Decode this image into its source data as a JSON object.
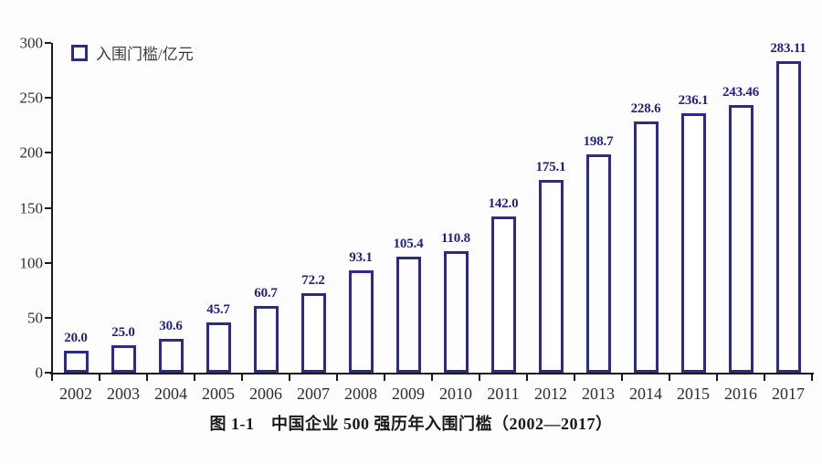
{
  "chart_data": {
    "type": "bar",
    "title": "图 1-1　中国企业 500 强历年入围门槛（2002—2017）",
    "legend": "入围门槛/亿元",
    "categories": [
      "2002",
      "2003",
      "2004",
      "2005",
      "2006",
      "2007",
      "2008",
      "2009",
      "2010",
      "2011",
      "2012",
      "2013",
      "2014",
      "2015",
      "2016",
      "2017"
    ],
    "values": [
      20.0,
      25.0,
      30.6,
      45.7,
      60.7,
      72.2,
      93.1,
      105.4,
      110.8,
      142.0,
      175.1,
      198.7,
      228.6,
      236.1,
      243.46,
      283.11
    ],
    "value_labels": [
      "20.0",
      "25.0",
      "30.6",
      "45.7",
      "60.7",
      "72.2",
      "93.1",
      "105.4",
      "110.8",
      "142.0",
      "175.1",
      "198.7",
      "228.6",
      "236.1",
      "243.46",
      "283.11"
    ],
    "xlabel": "",
    "ylabel": "",
    "ylim": [
      0,
      300
    ],
    "yticks": [
      "0",
      "50",
      "100",
      "150",
      "200",
      "250",
      "300"
    ],
    "grid": false,
    "legend_position": "top-left"
  },
  "colors": {
    "bar_border": "#2b2b8c",
    "bar_fill": "#ffffff",
    "value_label": "#22227e",
    "axis": "#1a1a1a",
    "tick_label": "#2e2e2e",
    "legend_text": "#3c3c3c",
    "caption_text": "#1a1a1a",
    "background": "#fdfdfd"
  }
}
